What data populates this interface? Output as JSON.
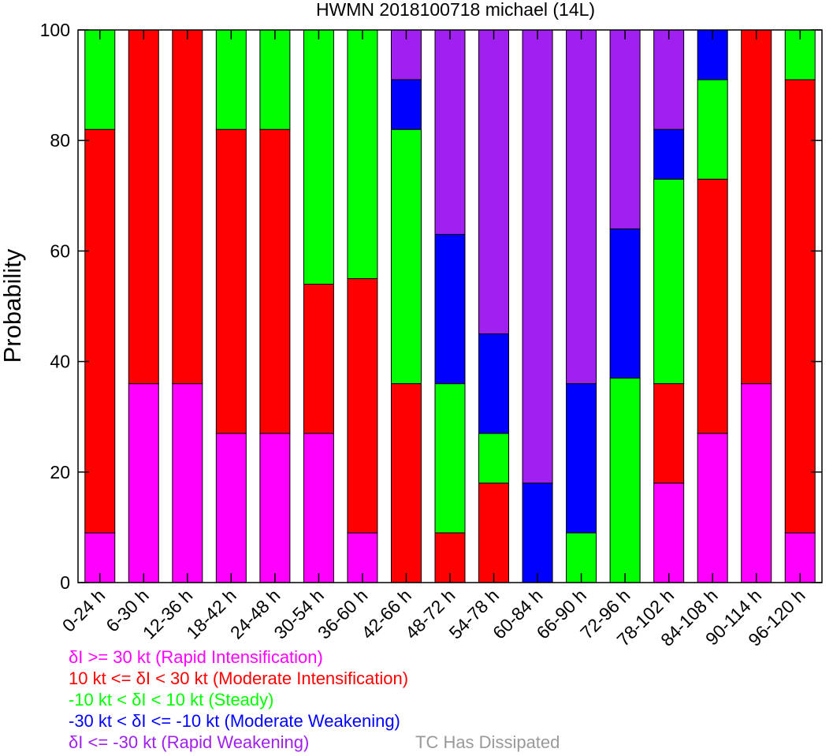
{
  "chart_data": {
    "type": "bar",
    "stacked": true,
    "title": "HWMN 2018100718 michael (14L)",
    "xlabel": "",
    "ylabel": "Probability",
    "ylim": [
      0,
      100
    ],
    "yticks": [
      0,
      20,
      40,
      60,
      80,
      100
    ],
    "categories": [
      "0-24 h",
      "6-30 h",
      "12-36 h",
      "18-42 h",
      "24-48 h",
      "30-54 h",
      "36-60 h",
      "42-66 h",
      "48-72 h",
      "54-78 h",
      "60-84 h",
      "66-90 h",
      "72-96 h",
      "78-102 h",
      "84-108 h",
      "90-114 h",
      "96-120 h"
    ],
    "series": [
      {
        "color": "#ff00ff",
        "values": [
          9,
          36,
          36,
          27,
          27,
          27,
          9,
          0,
          0,
          0,
          0,
          0,
          0,
          18,
          27,
          36,
          9
        ]
      },
      {
        "color": "#ff0000",
        "values": [
          73,
          64,
          64,
          55,
          55,
          27,
          46,
          36,
          9,
          18,
          0,
          0,
          0,
          18,
          46,
          64,
          82
        ]
      },
      {
        "color": "#00ff00",
        "values": [
          18,
          0,
          0,
          18,
          18,
          46,
          45,
          46,
          27,
          9,
          0,
          9,
          37,
          37,
          18,
          0,
          9
        ]
      },
      {
        "color": "#0000ff",
        "values": [
          0,
          0,
          0,
          0,
          0,
          0,
          0,
          9,
          27,
          18,
          18,
          27,
          27,
          9,
          9,
          0,
          0
        ]
      },
      {
        "color": "#a020f0",
        "values": [
          0,
          0,
          0,
          0,
          0,
          0,
          0,
          9,
          37,
          55,
          82,
          64,
          36,
          18,
          0,
          0,
          0
        ]
      }
    ],
    "legend": [
      {
        "text": "δI >= 30 kt (Rapid Intensification)",
        "color": "#ff00ff"
      },
      {
        "text": "10 kt <= δI < 30 kt (Moderate Intensification)",
        "color": "#ff0000"
      },
      {
        "text": "-10 kt < δI < 10 kt (Steady)",
        "color": "#00ff00"
      },
      {
        "text": "-30 kt < δI <= -10 kt (Moderate Weakening)",
        "color": "#0000ff"
      },
      {
        "text": "δI <= -30 kt (Rapid Weakening)",
        "color": "#a020f0"
      },
      {
        "text": "TC Has Dissipated",
        "color": "#999999"
      }
    ]
  }
}
